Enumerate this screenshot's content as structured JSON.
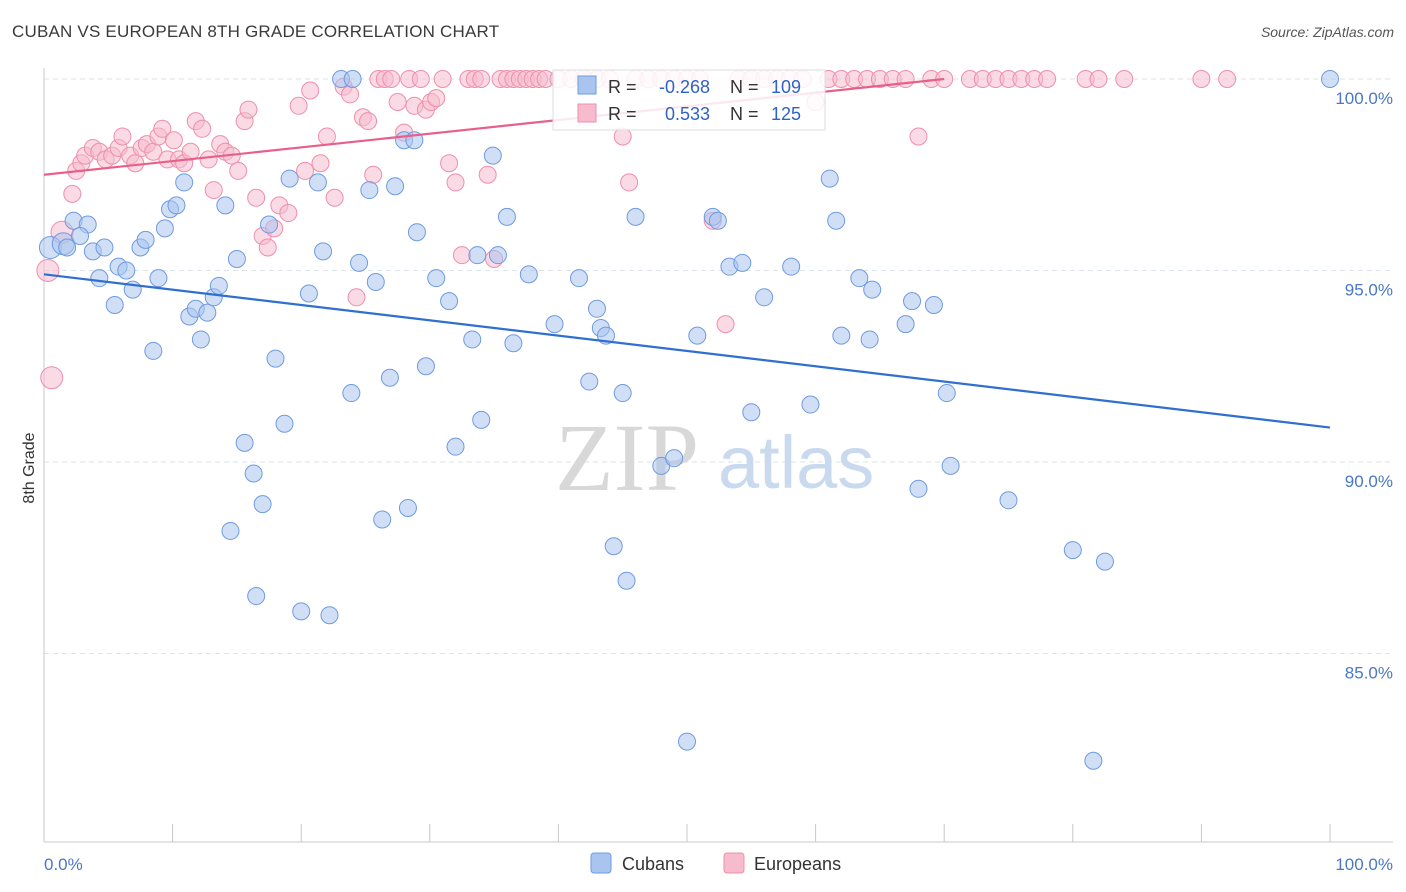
{
  "header": {
    "title": "CUBAN VS EUROPEAN 8TH GRADE CORRELATION CHART",
    "source": "Source: ZipAtlas.com"
  },
  "colors": {
    "cubans_fill": "#a9c4ee",
    "cubans_stroke": "#6e9be0",
    "cubans_line": "#2f6fd0",
    "europeans_fill": "#f6bccd",
    "europeans_stroke": "#ee8fac",
    "europeans_line": "#e8608a",
    "grid": "#dde3ea",
    "axis_label": "#4a78c2"
  },
  "legend": {
    "rows": [
      {
        "r_label": "R =",
        "r_value": "-0.268",
        "n_label": "N =",
        "n_value": "109"
      },
      {
        "r_label": "R =",
        "r_value": "0.533",
        "n_label": "N =",
        "n_value": "125"
      }
    ]
  },
  "watermark": {
    "zip": "ZIP",
    "atlas": "atlas"
  },
  "chart_data": {
    "type": "scatter",
    "title": "CUBAN VS EUROPEAN 8TH GRADE CORRELATION CHART",
    "xlabel": "",
    "ylabel": "8th Grade",
    "xlim": [
      0,
      100
    ],
    "ylim": [
      80.5,
      100.8
    ],
    "x_tick_labels": [
      "0.0%",
      "100.0%"
    ],
    "y_ticks": [
      85,
      90,
      95,
      100
    ],
    "y_tick_labels": [
      "85.0%",
      "90.0%",
      "95.0%",
      "100.0%"
    ],
    "grid": true,
    "legend_position": "bottom-center",
    "series": [
      {
        "name": "Cubans",
        "r": -0.268,
        "n": 109,
        "trend": {
          "x": [
            0,
            100
          ],
          "y": [
            94.9,
            90.9
          ]
        },
        "points": [
          [
            0.5,
            95.6
          ],
          [
            1.5,
            95.7
          ],
          [
            2.3,
            96.3
          ],
          [
            3.4,
            96.2
          ],
          [
            1.8,
            95.6
          ],
          [
            2.8,
            95.9
          ],
          [
            3.8,
            95.5
          ],
          [
            4.3,
            94.8
          ],
          [
            4.7,
            95.6
          ],
          [
            5.5,
            94.1
          ],
          [
            5.8,
            95.1
          ],
          [
            6.4,
            95.0
          ],
          [
            6.9,
            94.5
          ],
          [
            7.5,
            95.6
          ],
          [
            7.9,
            95.8
          ],
          [
            8.5,
            92.9
          ],
          [
            8.9,
            94.8
          ],
          [
            9.4,
            96.1
          ],
          [
            9.8,
            96.6
          ],
          [
            10.3,
            96.7
          ],
          [
            10.9,
            97.3
          ],
          [
            11.3,
            93.8
          ],
          [
            11.8,
            94.0
          ],
          [
            12.2,
            93.2
          ],
          [
            12.7,
            93.9
          ],
          [
            13.2,
            94.3
          ],
          [
            13.6,
            94.6
          ],
          [
            14.1,
            96.7
          ],
          [
            14.5,
            88.2
          ],
          [
            15.0,
            95.3
          ],
          [
            15.6,
            90.5
          ],
          [
            16.3,
            89.7
          ],
          [
            16.5,
            86.5
          ],
          [
            17.0,
            88.9
          ],
          [
            17.5,
            96.2
          ],
          [
            18.0,
            92.7
          ],
          [
            18.7,
            91.0
          ],
          [
            19.1,
            97.4
          ],
          [
            20.0,
            86.1
          ],
          [
            20.6,
            94.4
          ],
          [
            21.3,
            97.3
          ],
          [
            21.7,
            95.5
          ],
          [
            22.2,
            86.0
          ],
          [
            23.1,
            100.0
          ],
          [
            24.0,
            100.0
          ],
          [
            23.9,
            91.8
          ],
          [
            24.5,
            95.2
          ],
          [
            25.3,
            97.1
          ],
          [
            25.8,
            94.7
          ],
          [
            26.3,
            88.5
          ],
          [
            26.9,
            92.2
          ],
          [
            27.3,
            97.2
          ],
          [
            28.0,
            98.4
          ],
          [
            28.3,
            88.8
          ],
          [
            28.8,
            98.4
          ],
          [
            29.0,
            96.0
          ],
          [
            29.7,
            92.5
          ],
          [
            30.5,
            94.8
          ],
          [
            31.5,
            94.2
          ],
          [
            32.0,
            90.4
          ],
          [
            33.3,
            93.2
          ],
          [
            34.0,
            91.1
          ],
          [
            33.7,
            95.4
          ],
          [
            34.9,
            98.0
          ],
          [
            35.3,
            95.4
          ],
          [
            36.0,
            96.4
          ],
          [
            36.5,
            93.1
          ],
          [
            37.7,
            94.9
          ],
          [
            39.7,
            93.6
          ],
          [
            41.6,
            94.8
          ],
          [
            42.4,
            92.1
          ],
          [
            43.0,
            94.0
          ],
          [
            43.3,
            93.5
          ],
          [
            43.7,
            93.3
          ],
          [
            44.3,
            87.8
          ],
          [
            45.0,
            91.8
          ],
          [
            45.3,
            86.9
          ],
          [
            46.0,
            96.4
          ],
          [
            48.0,
            89.9
          ],
          [
            49.0,
            90.1
          ],
          [
            50.0,
            82.7
          ],
          [
            50.8,
            93.3
          ],
          [
            52.0,
            96.4
          ],
          [
            52.4,
            96.3
          ],
          [
            53.3,
            95.1
          ],
          [
            54.3,
            95.2
          ],
          [
            55.0,
            91.3
          ],
          [
            56.0,
            94.3
          ],
          [
            58.1,
            95.1
          ],
          [
            59.6,
            91.5
          ],
          [
            61.1,
            97.4
          ],
          [
            61.6,
            96.3
          ],
          [
            62.0,
            93.3
          ],
          [
            63.4,
            94.8
          ],
          [
            64.2,
            93.2
          ],
          [
            64.4,
            94.5
          ],
          [
            67.0,
            93.6
          ],
          [
            67.5,
            94.2
          ],
          [
            68.0,
            89.3
          ],
          [
            69.2,
            94.1
          ],
          [
            70.2,
            91.8
          ],
          [
            70.5,
            89.9
          ],
          [
            75.0,
            89.0
          ],
          [
            80.0,
            87.7
          ],
          [
            81.6,
            82.2
          ],
          [
            82.5,
            87.4
          ],
          [
            100.0,
            100.0
          ]
        ]
      },
      {
        "name": "Europeans",
        "r": 0.533,
        "n": 125,
        "trend": {
          "x": [
            0,
            70
          ],
          "y": [
            97.5,
            100.0
          ]
        },
        "points": [
          [
            0.3,
            95.0
          ],
          [
            0.6,
            92.2
          ],
          [
            1.4,
            96.0
          ],
          [
            2.2,
            97.0
          ],
          [
            2.5,
            97.6
          ],
          [
            2.9,
            97.8
          ],
          [
            3.2,
            98.0
          ],
          [
            3.8,
            98.2
          ],
          [
            4.3,
            98.1
          ],
          [
            4.8,
            97.9
          ],
          [
            5.3,
            98.0
          ],
          [
            5.8,
            98.2
          ],
          [
            6.1,
            98.5
          ],
          [
            6.7,
            98.0
          ],
          [
            7.1,
            97.8
          ],
          [
            7.6,
            98.2
          ],
          [
            8.0,
            98.3
          ],
          [
            8.5,
            98.1
          ],
          [
            8.9,
            98.5
          ],
          [
            9.2,
            98.7
          ],
          [
            9.6,
            97.9
          ],
          [
            10.1,
            98.4
          ],
          [
            10.5,
            97.9
          ],
          [
            10.9,
            97.8
          ],
          [
            11.4,
            98.1
          ],
          [
            11.8,
            98.9
          ],
          [
            12.3,
            98.7
          ],
          [
            12.8,
            97.9
          ],
          [
            13.2,
            97.1
          ],
          [
            13.7,
            98.3
          ],
          [
            14.1,
            98.1
          ],
          [
            14.6,
            98.0
          ],
          [
            15.1,
            97.6
          ],
          [
            15.6,
            98.9
          ],
          [
            15.9,
            99.2
          ],
          [
            16.5,
            96.9
          ],
          [
            17.0,
            95.9
          ],
          [
            17.4,
            95.6
          ],
          [
            17.9,
            96.1
          ],
          [
            18.3,
            96.7
          ],
          [
            19.0,
            96.5
          ],
          [
            19.8,
            99.3
          ],
          [
            20.3,
            97.6
          ],
          [
            20.7,
            99.7
          ],
          [
            21.5,
            97.8
          ],
          [
            22.0,
            98.5
          ],
          [
            22.6,
            96.9
          ],
          [
            23.3,
            99.8
          ],
          [
            23.8,
            99.6
          ],
          [
            24.3,
            94.3
          ],
          [
            24.8,
            99.0
          ],
          [
            25.2,
            98.9
          ],
          [
            25.6,
            97.5
          ],
          [
            26.0,
            100.0
          ],
          [
            26.5,
            100.0
          ],
          [
            27.0,
            100.0
          ],
          [
            27.5,
            99.4
          ],
          [
            28.0,
            98.6
          ],
          [
            28.4,
            100.0
          ],
          [
            28.8,
            99.3
          ],
          [
            29.3,
            100.0
          ],
          [
            29.7,
            99.2
          ],
          [
            30.1,
            99.4
          ],
          [
            30.5,
            99.5
          ],
          [
            31.0,
            100.0
          ],
          [
            31.5,
            97.8
          ],
          [
            32.0,
            97.3
          ],
          [
            32.5,
            95.4
          ],
          [
            33.0,
            100.0
          ],
          [
            33.5,
            100.0
          ],
          [
            34.0,
            100.0
          ],
          [
            34.5,
            97.5
          ],
          [
            35.0,
            95.3
          ],
          [
            35.5,
            100.0
          ],
          [
            36.0,
            100.0
          ],
          [
            36.5,
            100.0
          ],
          [
            37.0,
            100.0
          ],
          [
            37.5,
            100.0
          ],
          [
            38.0,
            100.0
          ],
          [
            38.5,
            100.0
          ],
          [
            39.0,
            100.0
          ],
          [
            40.0,
            100.0
          ],
          [
            41.0,
            100.0
          ],
          [
            42.0,
            100.0
          ],
          [
            43.0,
            100.0
          ],
          [
            44.0,
            100.0
          ],
          [
            45.0,
            98.5
          ],
          [
            45.5,
            97.3
          ],
          [
            46.0,
            100.0
          ],
          [
            47.0,
            100.0
          ],
          [
            48.0,
            100.0
          ],
          [
            49.0,
            100.0
          ],
          [
            50.0,
            100.0
          ],
          [
            51.0,
            100.0
          ],
          [
            52.0,
            96.3
          ],
          [
            53.0,
            93.6
          ],
          [
            54.0,
            100.0
          ],
          [
            55.0,
            100.0
          ],
          [
            56.0,
            100.0
          ],
          [
            57.0,
            100.0
          ],
          [
            58.0,
            100.0
          ],
          [
            59.0,
            100.0
          ],
          [
            60.0,
            99.4
          ],
          [
            61.0,
            100.0
          ],
          [
            62.0,
            100.0
          ],
          [
            63.0,
            100.0
          ],
          [
            64.0,
            100.0
          ],
          [
            65.0,
            100.0
          ],
          [
            66.0,
            100.0
          ],
          [
            67.0,
            100.0
          ],
          [
            68.0,
            98.5
          ],
          [
            69.0,
            100.0
          ],
          [
            70.0,
            100.0
          ],
          [
            72.0,
            100.0
          ],
          [
            73.0,
            100.0
          ],
          [
            74.0,
            100.0
          ],
          [
            75.0,
            100.0
          ],
          [
            76.0,
            100.0
          ],
          [
            77.0,
            100.0
          ],
          [
            78.0,
            100.0
          ],
          [
            81.0,
            100.0
          ],
          [
            82.0,
            100.0
          ],
          [
            84.0,
            100.0
          ],
          [
            90.0,
            100.0
          ],
          [
            92.0,
            100.0
          ]
        ]
      }
    ]
  },
  "bottom_legend": {
    "items": [
      {
        "label": "Cubans"
      },
      {
        "label": "Europeans"
      }
    ]
  }
}
